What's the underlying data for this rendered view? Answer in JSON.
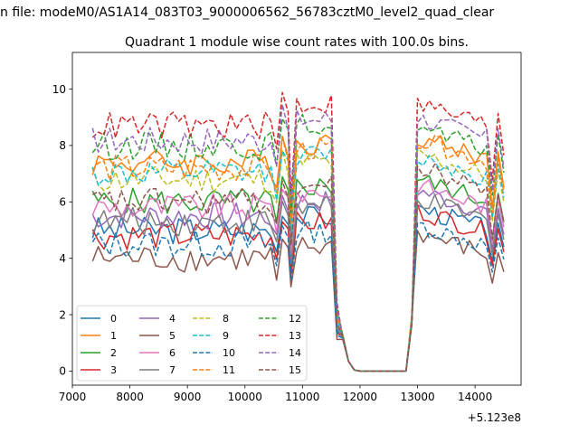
{
  "figure": {
    "suptitle": "n file: modeM0/AS1A14_083T03_9000006562_56783cztM0_level2_quad_clear",
    "title": "Quadrant 1 module wise count rates with 100.0s bins.",
    "x_offset_label": "+5.123e8"
  },
  "chart_data": {
    "type": "line",
    "title": "Quadrant 1 module wise count rates with 100.0s bins.",
    "xlabel": "",
    "ylabel": "",
    "x_offset": 512300000,
    "xlim": [
      7000,
      14800
    ],
    "ylim": [
      -0.5,
      11.3
    ],
    "xticks": [
      7000,
      8000,
      9000,
      10000,
      11000,
      12000,
      13000,
      14000
    ],
    "yticks": [
      0,
      2,
      4,
      6,
      8,
      10
    ],
    "xtick_labels": [
      "7000",
      "8000",
      "9000",
      "10000",
      "11000",
      "12000",
      "13000",
      "14000"
    ],
    "ytick_labels": [
      "0",
      "2",
      "4",
      "6",
      "8",
      "10"
    ],
    "grid": false,
    "legend_position": "lower-left",
    "legend_columns": 4,
    "anchors": {
      "segment1": [
        7350,
        10550
      ],
      "dip1": [
        10550,
        10650
      ],
      "segment2": [
        10650,
        10750
      ],
      "dip2": [
        10800,
        10850
      ],
      "segment3": [
        10900,
        11550
      ],
      "drop": [
        11600,
        12000
      ],
      "zero": [
        12000,
        12800
      ],
      "rise": [
        12800,
        13000
      ],
      "segment4": [
        13000,
        14200
      ],
      "dip3": [
        14300,
        14400
      ],
      "end": 14500
    },
    "series": [
      {
        "name": "0",
        "color": "#1f77b4",
        "dash": "solid",
        "level": 5.0,
        "peak": 5.8
      },
      {
        "name": "1",
        "color": "#ff7f0e",
        "dash": "solid",
        "level": 7.4,
        "peak": 8.3
      },
      {
        "name": "2",
        "color": "#2ca02c",
        "dash": "solid",
        "level": 6.0,
        "peak": 6.8
      },
      {
        "name": "3",
        "color": "#d62728",
        "dash": "solid",
        "level": 4.8,
        "peak": 5.7
      },
      {
        "name": "4",
        "color": "#9467bd",
        "dash": "solid",
        "level": 5.5,
        "peak": 6.4
      },
      {
        "name": "5",
        "color": "#8c564b",
        "dash": "solid",
        "level": 4.0,
        "peak": 4.9
      },
      {
        "name": "6",
        "color": "#e377c2",
        "dash": "solid",
        "level": 5.8,
        "peak": 6.6
      },
      {
        "name": "7",
        "color": "#7f7f7f",
        "dash": "solid",
        "level": 5.3,
        "peak": 6.1
      },
      {
        "name": "8",
        "color": "#bcbd22",
        "dash": "dashed",
        "level": 6.8,
        "peak": 7.7
      },
      {
        "name": "9",
        "color": "#17becf",
        "dash": "dashed",
        "level": 7.0,
        "peak": 7.6
      },
      {
        "name": "10",
        "color": "#1f77b4",
        "dash": "dashed",
        "level": 4.5,
        "peak": 5.2
      },
      {
        "name": "11",
        "color": "#ff7f0e",
        "dash": "dashed",
        "level": 7.2,
        "peak": 8.2
      },
      {
        "name": "12",
        "color": "#2ca02c",
        "dash": "dashed",
        "level": 8.0,
        "peak": 8.6
      },
      {
        "name": "13",
        "color": "#d62728",
        "dash": "dashed",
        "level": 8.7,
        "peak": 9.5
      },
      {
        "name": "14",
        "color": "#9467bd",
        "dash": "dashed",
        "level": 8.2,
        "peak": 9.0
      },
      {
        "name": "15",
        "color": "#8c564b",
        "dash": "dashed",
        "level": 6.0,
        "peak": 7.2
      }
    ]
  }
}
